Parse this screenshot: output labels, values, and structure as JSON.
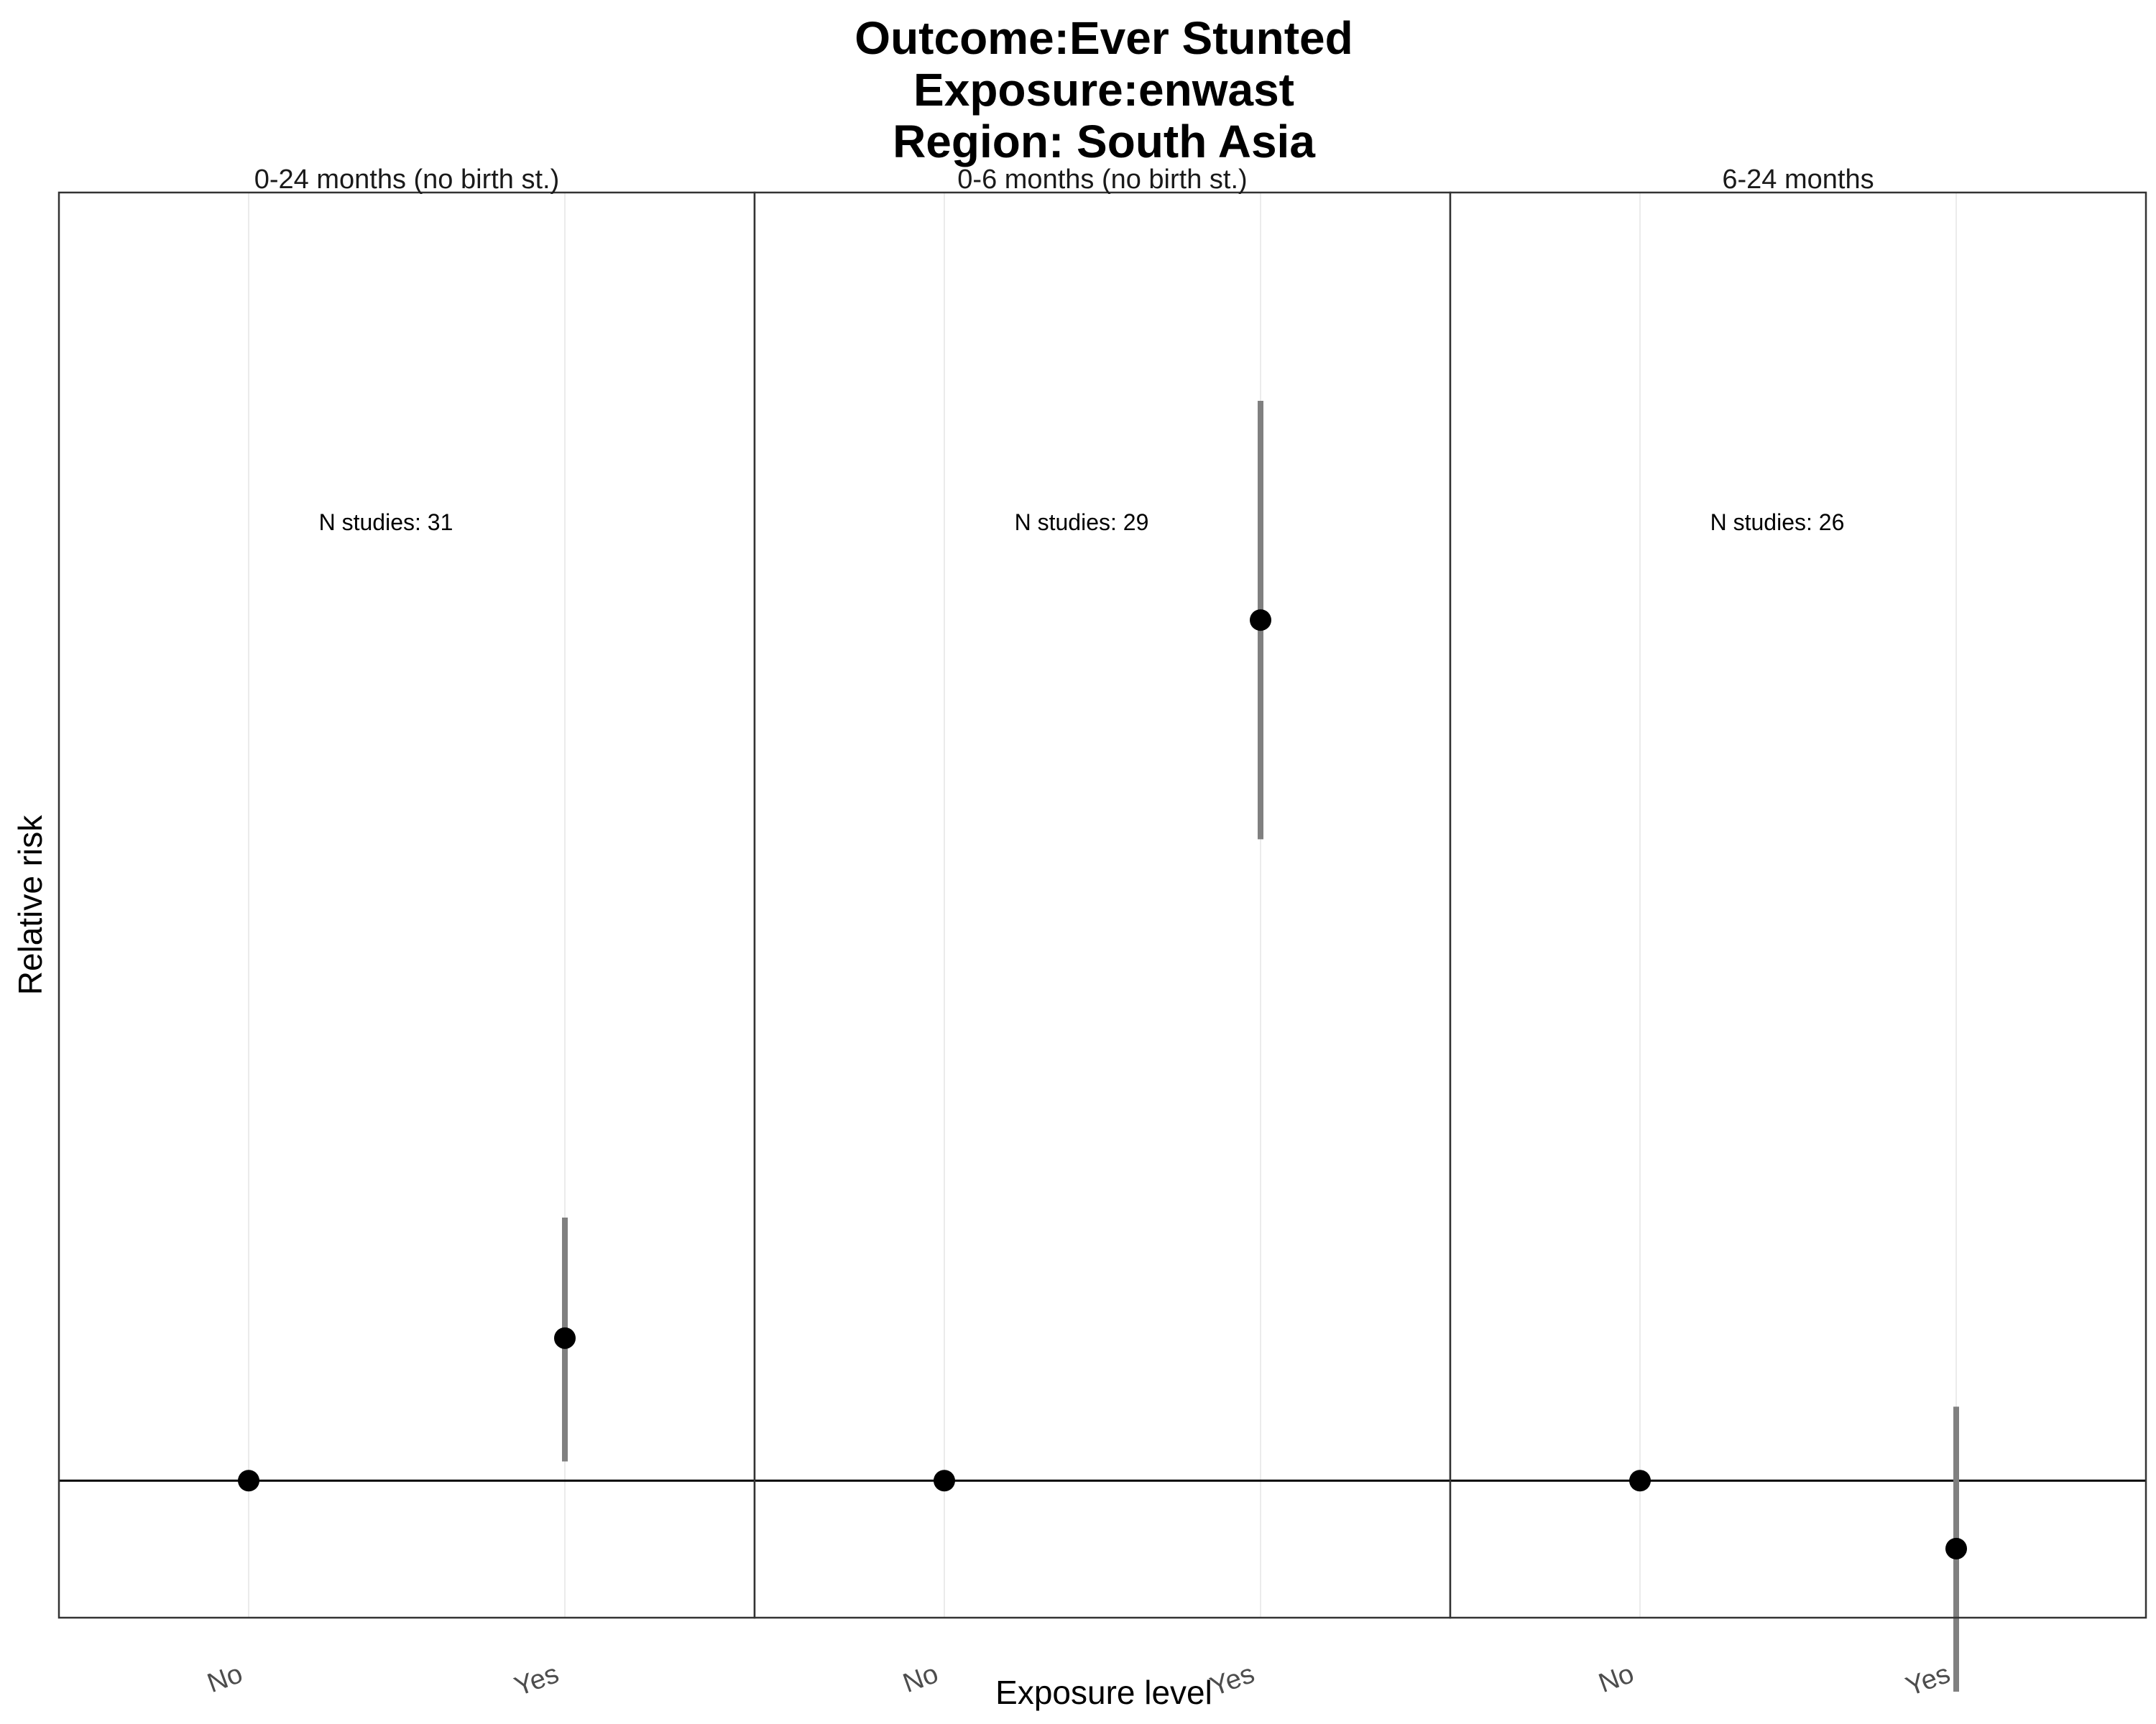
{
  "chart_data": {
    "type": "scatter",
    "title": [
      "Outcome:Ever Stunted",
      "Exposure:enwast",
      "Region: South Asia"
    ],
    "xlabel": "Exposure level",
    "ylabel": "Relative risk",
    "categories": [
      "No",
      "Yes"
    ],
    "ylim": [
      0.75,
      3.35
    ],
    "reference_line": 1.0,
    "grid": "vertical-major",
    "point_color": "#000000",
    "errorbar_color": "#808080",
    "panels": [
      {
        "label": "0-24 months (no birth st.)",
        "annotation": "N studies: 31",
        "points": [
          {
            "x": "No",
            "rr": 1.0
          },
          {
            "x": "Yes",
            "rr": 1.26,
            "lower": 1.035,
            "upper": 1.48
          }
        ]
      },
      {
        "label": "0-6 months (no birth st.)",
        "annotation": "N studies: 29",
        "points": [
          {
            "x": "No",
            "rr": 1.0
          },
          {
            "x": "Yes",
            "rr": 2.57,
            "lower": 2.17,
            "upper": 2.97
          }
        ]
      },
      {
        "label": "6-24 months",
        "annotation": "N studies: 26",
        "points": [
          {
            "x": "No",
            "rr": 1.0
          },
          {
            "x": "Yes",
            "rr": 0.876,
            "lower": 0.615,
            "upper": 1.135
          }
        ]
      }
    ]
  }
}
